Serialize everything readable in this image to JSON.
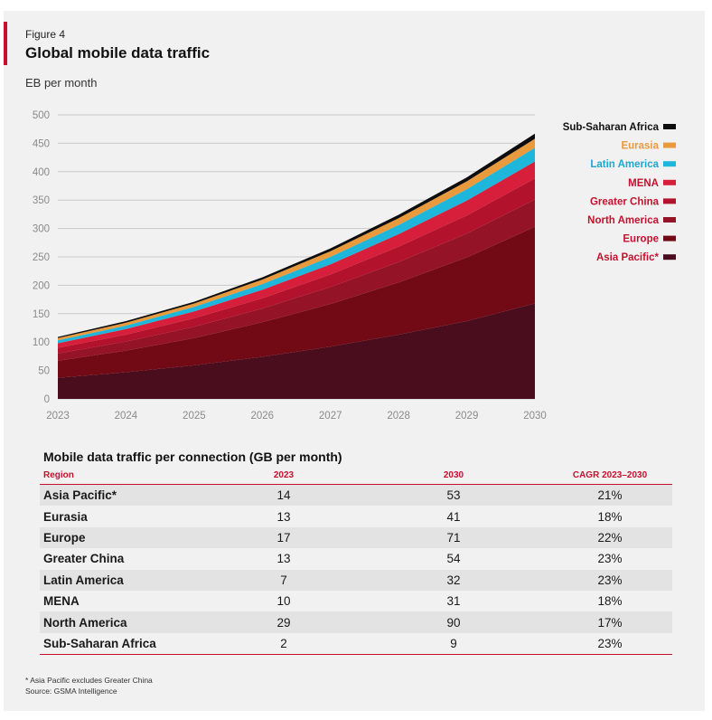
{
  "figure": {
    "label": "Figure 4"
  },
  "chart_data": {
    "type": "area",
    "stacked": true,
    "title": "Global mobile data traffic",
    "ylabel": "EB per month",
    "xlabel": "",
    "x": [
      "2023",
      "2024",
      "2025",
      "2026",
      "2027",
      "2028",
      "2029",
      "2030"
    ],
    "y_ticks": [
      0,
      50,
      100,
      150,
      200,
      250,
      300,
      350,
      400,
      450,
      500
    ],
    "ylim": [
      0,
      500
    ],
    "grid": true,
    "legend_position": "right",
    "series": [
      {
        "name": "Asia Pacific*",
        "color": "#4a0d1e",
        "values": [
          37,
          47,
          59,
          74,
          92,
          113,
          137,
          168
        ]
      },
      {
        "name": "Europe",
        "color": "#720a15",
        "values": [
          30,
          38,
          48,
          61,
          75,
          92,
          112,
          135
        ]
      },
      {
        "name": "North America",
        "color": "#941327",
        "values": [
          13,
          16,
          20,
          24,
          30,
          36,
          42,
          48
        ]
      },
      {
        "name": "Greater China",
        "color": "#b3122c",
        "values": [
          10,
          12,
          15,
          18,
          22,
          27,
          32,
          37
        ]
      },
      {
        "name": "MENA",
        "color": "#d71f3b",
        "values": [
          8,
          10,
          12,
          15,
          18,
          22,
          26,
          30
        ]
      },
      {
        "name": "Latin America",
        "color": "#1fb6dc",
        "values": [
          5,
          6,
          8,
          10,
          13,
          16,
          20,
          24
        ]
      },
      {
        "name": "Eurasia",
        "color": "#e89a3c",
        "values": [
          4,
          5,
          6,
          8,
          10,
          12,
          14,
          16
        ]
      },
      {
        "name": "Sub-Saharan Africa",
        "color": "#0d0d0d",
        "values": [
          2,
          3,
          3,
          4,
          5,
          6,
          7,
          9
        ]
      }
    ]
  },
  "table": {
    "title": "Mobile data traffic per connection (GB per month)",
    "headers": [
      "Region",
      "2023",
      "2030",
      "CAGR 2023–2030"
    ],
    "rows": [
      [
        "Asia Pacific*",
        "14",
        "53",
        "21%"
      ],
      [
        "Eurasia",
        "13",
        "41",
        "18%"
      ],
      [
        "Europe",
        "17",
        "71",
        "22%"
      ],
      [
        "Greater China",
        "13",
        "54",
        "23%"
      ],
      [
        "Latin America",
        "7",
        "32",
        "23%"
      ],
      [
        "MENA",
        "10",
        "31",
        "18%"
      ],
      [
        "North America",
        "29",
        "90",
        "17%"
      ],
      [
        "Sub-Saharan Africa",
        "2",
        "9",
        "23%"
      ]
    ]
  },
  "footnote": {
    "note": "* Asia Pacific excludes Greater China",
    "source": "Source: GSMA Intelligence"
  }
}
